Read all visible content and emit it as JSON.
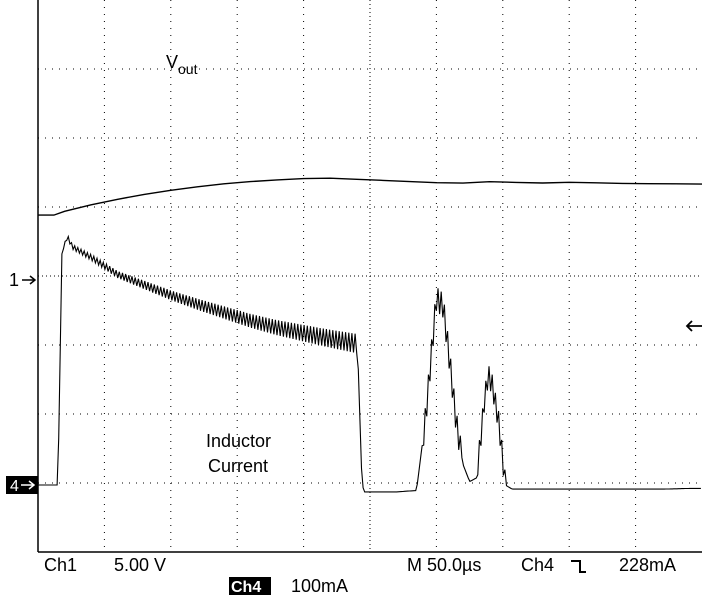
{
  "chart_data": {
    "type": "line",
    "x_label": "",
    "y_label": "",
    "grid": true,
    "grid_style": "dotted",
    "divisions": {
      "x": 10,
      "y": 8
    },
    "x_unit": "µs",
    "x_per_div": 50,
    "markers": {
      "ch1": "1",
      "ch4": "4",
      "trigger_arrow": "←"
    },
    "series": [
      {
        "name": "Vout",
        "name_main": "V",
        "name_sub": "out",
        "channel": "Ch1",
        "x": [
          0,
          12,
          20,
          40,
          60,
          80,
          100,
          120,
          140,
          160,
          180,
          200,
          220,
          240,
          260,
          280,
          300,
          320,
          340,
          360,
          380,
          400,
          420,
          440,
          460,
          480,
          500
        ],
        "y": [
          4.7,
          4.7,
          4.98,
          5.45,
          5.85,
          6.2,
          6.5,
          6.75,
          6.97,
          7.13,
          7.25,
          7.35,
          7.38,
          7.3,
          7.22,
          7.13,
          7.05,
          7.02,
          7.12,
          7.07,
          7.03,
          7.08,
          7.04,
          7.0,
          6.98,
          6.97,
          6.95
        ]
      },
      {
        "name": "Inductor Current",
        "name_lines": [
          "Inductor",
          "Current"
        ],
        "channel": "Ch4",
        "x": [
          0,
          15,
          18,
          22,
          26,
          40,
          60,
          80,
          100,
          120,
          140,
          160,
          180,
          200,
          220,
          240,
          242,
          244,
          246,
          255,
          270,
          285,
          292,
          300,
          305,
          310,
          315,
          320,
          325,
          330,
          333,
          336,
          339,
          342,
          347,
          352,
          357,
          360,
          370,
          390,
          410,
          430,
          450,
          470,
          490,
          500
        ],
        "y": [
          0,
          0,
          3.35,
          3.6,
          3.45,
          3.3,
          3.05,
          2.9,
          2.75,
          2.62,
          2.5,
          2.38,
          2.28,
          2.2,
          2.12,
          2.05,
          1.2,
          0,
          -0.1,
          -0.1,
          -0.1,
          -0.08,
          1.0,
          2.7,
          2.6,
          1.8,
          0.9,
          0.3,
          0.05,
          0.1,
          0.6,
          1.2,
          1.6,
          1.45,
          0.9,
          0,
          -0.06,
          -0.06,
          -0.06,
          -0.06,
          -0.06,
          -0.06,
          -0.06,
          -0.06,
          -0.05,
          -0.05
        ]
      }
    ]
  },
  "status": {
    "ch1_label": "Ch1",
    "ch1_scale": "5.00 V",
    "timebase": "M 50.0µs",
    "trigger_source": "Ch4",
    "trigger_slope": "↲",
    "trigger_level": "228mA",
    "ch4_label": "Ch4",
    "ch4_scale": "100mA"
  }
}
